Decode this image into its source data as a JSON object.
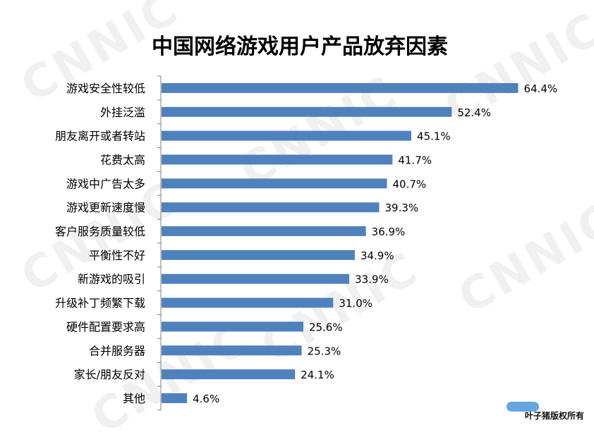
{
  "watermark": "CNNIC",
  "credit": "叶子猪版权所有",
  "chart_data": {
    "type": "bar",
    "orientation": "horizontal",
    "title": "中国网络游戏用户产品放弃因素",
    "categories": [
      "游戏安全性较低",
      "外挂泛滥",
      "朋友离开或者转站",
      "花费太高",
      "游戏中广告太多",
      "游戏更新速度慢",
      "客户服务质量较低",
      "平衡性不好",
      "新游戏的吸引",
      "升级补丁频繁下载",
      "硬件配置要求高",
      "合并服务器",
      "家长/朋友反对",
      "其他"
    ],
    "values": [
      64.4,
      52.4,
      45.1,
      41.7,
      40.7,
      39.3,
      36.9,
      34.9,
      33.9,
      31.0,
      25.6,
      25.3,
      24.1,
      4.6
    ],
    "value_labels": [
      "64.4%",
      "52.4%",
      "45.1%",
      "41.7%",
      "40.7%",
      "39.3%",
      "36.9%",
      "34.9%",
      "33.9%",
      "31.0%",
      "25.6%",
      "25.3%",
      "24.1%",
      "4.6%"
    ],
    "xlim": [
      0,
      100
    ],
    "bar_color": "#4f81bd",
    "grid": false,
    "legend": "none"
  }
}
